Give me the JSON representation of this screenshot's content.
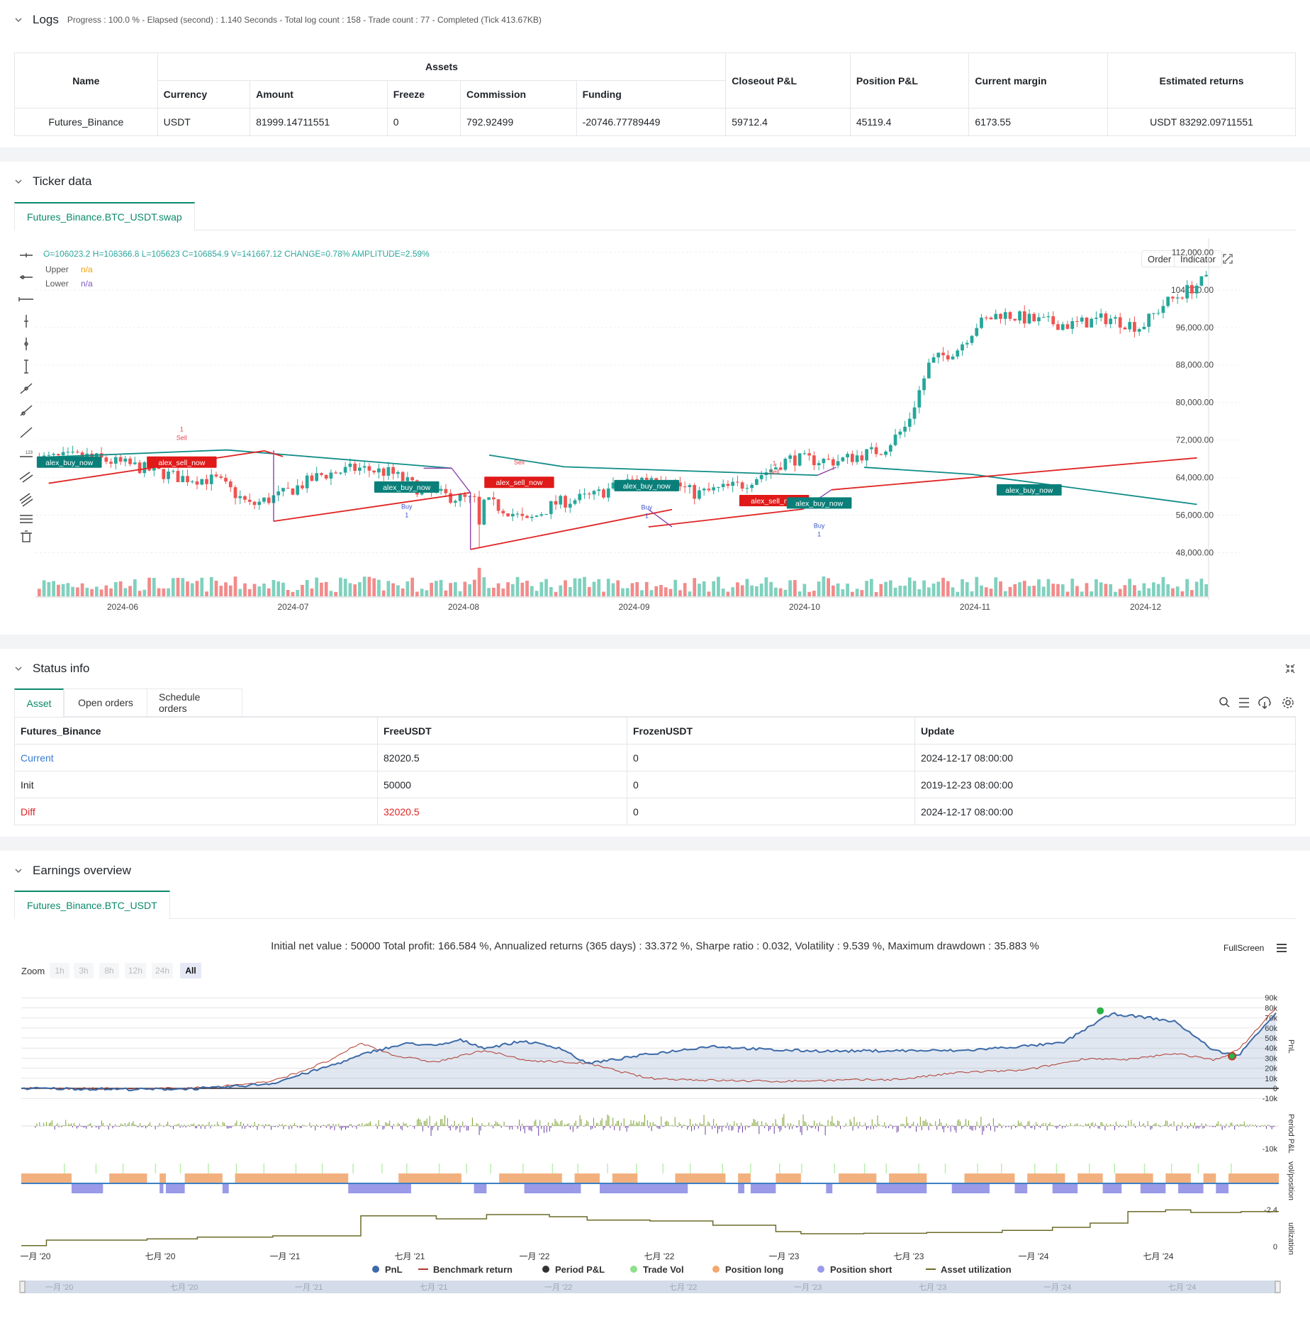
{
  "logs": {
    "title": "Logs",
    "subtitle": "Progress : 100.0 % - Elapsed (second) : 1.140  Seconds - Total log count : 158 - Trade count : 77 - Completed (Tick 413.67KB)",
    "table": {
      "name_header": "Name",
      "assets_header": "Assets",
      "sub_headers": [
        "Currency",
        "Amount",
        "Freeze",
        "Commission",
        "Funding"
      ],
      "right_headers": [
        "Closeout P&L",
        "Position P&L",
        "Current margin",
        "Estimated returns"
      ],
      "row": [
        "Futures_Binance",
        "USDT",
        "81999.14711551",
        "0",
        "792.92499",
        "-20746.77789449",
        "59712.4",
        "45119.4",
        "6173.55",
        "USDT 83292.09711551"
      ]
    }
  },
  "ticker": {
    "title": "Ticker data",
    "tab": "Futures_Binance.BTC_USDT.swap",
    "ohlc": {
      "O": "O=106023.2",
      "H": "H=108366.8",
      "L": "L=105623",
      "C": "C=106854.9",
      "V": "V=141667.12",
      "change": "CHANGE=0.78%",
      "amplitude": "AMPLITUDE=2.59%"
    },
    "legend": [
      {
        "name": "Upper",
        "value": "n/a",
        "color": "#f59e0b"
      },
      {
        "name": "Lower",
        "value": "n/a",
        "color": "#7e57c2"
      }
    ],
    "buttons": {
      "order": "Order",
      "indicator": "Indicator"
    },
    "colors": {
      "up": "#26a69a",
      "down": "#ef5350",
      "upper_line": "#0e8c87",
      "lower_line": "#e02424"
    },
    "chart_data": {
      "type": "candlestick",
      "x_ticks": [
        "2024-06",
        "2024-07",
        "2024-08",
        "2024-09",
        "2024-10",
        "2024-11",
        "2024-12"
      ],
      "y_ticks": [
        "112,000.00",
        "104,000.00",
        "96,000.00",
        "88,000.00",
        "80,000.00",
        "72,000.00",
        "64,000.00",
        "56,000.00",
        "48,000.00"
      ],
      "ylim": [
        44000,
        115000
      ],
      "labels": [
        {
          "text": "alex_buy_now",
          "kind": "buy",
          "day": 4,
          "price": 67300
        },
        {
          "text": "alex_sell_now",
          "kind": "sell",
          "day": 19,
          "price": 67300
        },
        {
          "text": "alex_buy_now",
          "kind": "buy",
          "day": 49,
          "price": 62000
        },
        {
          "text": "alex_sell_now",
          "kind": "sell",
          "day": 64,
          "price": 63000
        },
        {
          "text": "alex_buy_now",
          "kind": "buy",
          "day": 81,
          "price": 62300
        },
        {
          "text": "alex_sell_now",
          "kind": "sell",
          "day": 98,
          "price": 59100
        },
        {
          "text": "alex_buy_now",
          "kind": "buy",
          "day": 104,
          "price": 58600
        },
        {
          "text": "alex_buy_now",
          "kind": "buy",
          "day": 132,
          "price": 61400
        }
      ],
      "signals": [
        {
          "text": "Sell",
          "count": "1",
          "day": 19,
          "price": 72000,
          "kind": "sell"
        },
        {
          "text": "Sell",
          "count": "",
          "day": 64,
          "price": 66800,
          "kind": "sell"
        },
        {
          "text": "Buy",
          "count": "1",
          "day": 49,
          "price": 57400,
          "kind": "buy"
        },
        {
          "text": "Buy",
          "count": "1",
          "day": 81,
          "price": 57200,
          "kind": "buy"
        },
        {
          "text": "Sell",
          "count": "1",
          "day": 98,
          "price": 64800,
          "kind": "sell"
        },
        {
          "text": "Buy",
          "count": "1",
          "day": 104,
          "price": 53300,
          "kind": "buy"
        }
      ]
    }
  },
  "status": {
    "title": "Status info",
    "tabs": [
      "Asset",
      "Open orders",
      "Schedule orders"
    ],
    "headers": [
      "Futures_Binance",
      "FreeUSDT",
      "FrozenUSDT",
      "Update"
    ],
    "rows": [
      [
        "Current",
        "82020.5",
        "0",
        "2024-12-17 08:00:00"
      ],
      [
        "Init",
        "50000",
        "0",
        "2019-12-23 08:00:00"
      ],
      [
        "Diff",
        "32020.5",
        "0",
        "2024-12-17 08:00:00"
      ]
    ]
  },
  "earnings": {
    "title": "Earnings overview",
    "tab": "Futures_Binance.BTC_USDT",
    "summary": "Initial net value : 50000 Total profit: 166.584 %, Annualized returns (365 days) : 33.372 %, Sharpe ratio : 0.032, Volatility : 9.539 %, Maximum drawdown : 35.883 %",
    "fullscreen": "FullScreen",
    "zoom_label": "Zoom",
    "zoom_options": [
      "1h",
      "3h",
      "8h",
      "12h",
      "24h",
      "All"
    ],
    "axis_titles": [
      "PnL",
      "Period P&L",
      "vol/position",
      "utilization"
    ],
    "pnl_ticks": [
      "90k",
      "80k",
      "70k",
      "60k",
      "50k",
      "40k",
      "30k",
      "20k",
      "10k",
      "0",
      "-10k"
    ],
    "period_tick": "-10k",
    "pos_tick": "-2.4",
    "util_tick": "0",
    "x_ticks": [
      "一月 '20",
      "七月 '20",
      "一月 '21",
      "七月 '21",
      "一月 '22",
      "七月 '22",
      "一月 '23",
      "七月 '23",
      "一月 '24",
      "七月 '24"
    ],
    "legend": [
      {
        "name": "PnL",
        "color": "#3d6aa8",
        "shape": "dot"
      },
      {
        "name": "Benchmark return",
        "color": "#b03a2e",
        "shape": "line"
      },
      {
        "name": "Period P&L",
        "color": "#333333",
        "shape": "dot"
      },
      {
        "name": "Trade Vol",
        "color": "#8ee08a",
        "shape": "dot"
      },
      {
        "name": "Position long",
        "color": "#f2a86e",
        "shape": "dot"
      },
      {
        "name": "Position short",
        "color": "#9a9ae8",
        "shape": "dot"
      },
      {
        "name": "Asset utilization",
        "color": "#6b6b2a",
        "shape": "line"
      }
    ]
  }
}
